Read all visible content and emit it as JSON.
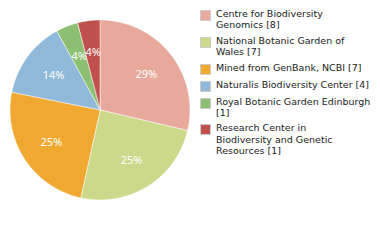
{
  "chart_data": {
    "type": "pie",
    "categories": [
      "Centre for Biodiversity\nGenomics [8]",
      "National Botanic Garden of\nWales [7]",
      "Mined from GenBank, NCBI [7]",
      "Naturalis Biodiversity Center [4]",
      "Royal Botanic Garden Edinburgh [1]",
      "Research Center in\nBiodiversity and Genetic\nResources [1]"
    ],
    "values": [
      29,
      25,
      25,
      14,
      4,
      4
    ],
    "value_labels": [
      "29%",
      "25%",
      "25%",
      "14%",
      "4%",
      "4%"
    ],
    "colors": [
      "#e8a89c",
      "#cdd98a",
      "#f0a830",
      "#90b8d8",
      "#8dbf72",
      "#c0504d"
    ],
    "data_labels": true,
    "legend": "right"
  }
}
